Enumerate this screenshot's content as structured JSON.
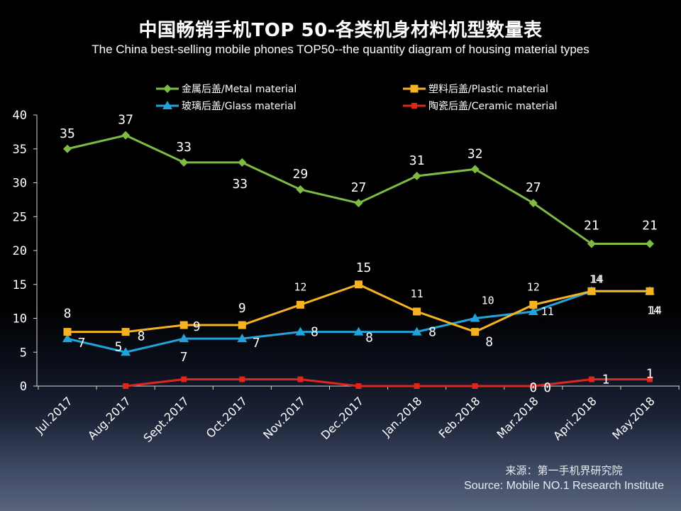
{
  "title_cn": "中国畅销手机TOP 50-各类机身材料机型数量表",
  "title_en": "The China best-selling mobile phones TOP50--the quantity diagram of housing material types",
  "source_cn": "来源：第一手机界研究院",
  "source_en": "Source: Mobile NO.1 Research Institute",
  "chart_data": {
    "type": "line",
    "title": "中国畅销手机TOP 50-各类机身材料机型数量表",
    "subtitle": "The China best-selling mobile phones TOP50--the quantity diagram of housing material types",
    "categories": [
      "Jul.2017",
      "Aug.2017",
      "Sept.2017",
      "Oct.2017",
      "Nov.2017",
      "Dec.2017",
      "Jan.2018",
      "Feb.2018",
      "Mar.2018",
      "Apri.2018",
      "May.2018"
    ],
    "ylim": [
      0,
      40
    ],
    "yticks": [
      0,
      5,
      10,
      15,
      20,
      25,
      30,
      35,
      40
    ],
    "legend_position": "top",
    "series": [
      {
        "name": "金属后盖/Metal material",
        "color": "#7dbb42",
        "marker": "diamond",
        "values": [
          35,
          37,
          33,
          33,
          29,
          27,
          31,
          32,
          27,
          21,
          21
        ]
      },
      {
        "name": "玻璃后盖/Glass material",
        "color": "#21a3dc",
        "marker": "triangle",
        "values": [
          7,
          5,
          7,
          7,
          8,
          8,
          8,
          10,
          11,
          14,
          14
        ]
      },
      {
        "name": "塑料后盖/Plastic material",
        "color": "#f5b324",
        "marker": "square",
        "values": [
          8,
          8,
          9,
          9,
          12,
          15,
          11,
          8,
          12,
          14,
          14
        ]
      },
      {
        "name": "陶瓷后盖/Ceramic material",
        "color": "#e0251d",
        "marker": "square",
        "values": [
          null,
          0,
          1,
          1,
          1,
          0,
          0,
          0,
          0,
          1,
          1
        ]
      }
    ]
  }
}
